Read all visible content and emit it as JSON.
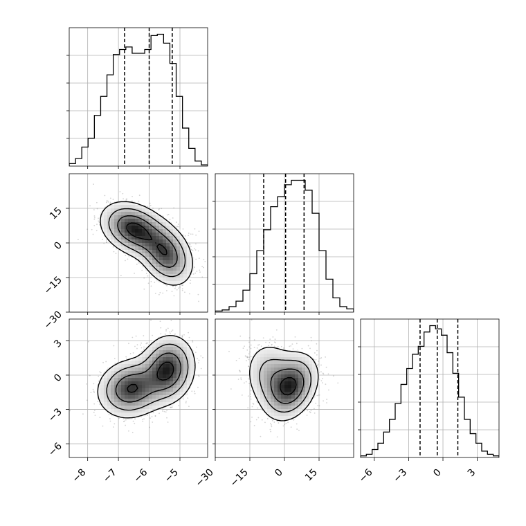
{
  "chart_data": {
    "type": "corner",
    "parameters": 3,
    "params": [
      {
        "range": [
          -8.6,
          -4.1
        ],
        "ticks": [
          -8,
          -7,
          -6,
          -5
        ],
        "tick_labels": [
          "−8",
          "−7",
          "−6",
          "−5"
        ],
        "quantiles": [
          -6.8,
          -6.0,
          -5.25
        ],
        "hist": [
          0.2,
          0.6,
          1.5,
          2.2,
          4.0,
          5.5,
          7.2,
          8.8,
          9.2,
          9.4,
          8.9,
          8.9,
          9.2,
          10.3,
          10.4,
          9.7,
          8.1,
          5.5,
          3.0,
          1.4,
          0.4,
          0.1
        ]
      },
      {
        "range": [
          -30,
          30
        ],
        "ticks": [
          -30,
          -15,
          0,
          15
        ],
        "tick_labels": [
          "−30",
          "−15",
          "0",
          "15"
        ],
        "quantiles": [
          -9,
          0.5,
          8.5
        ],
        "hist": [
          0.1,
          0.2,
          0.5,
          1.0,
          2.0,
          3.5,
          5.6,
          7.5,
          9.6,
          10.5,
          11.6,
          12.0,
          12.0,
          11.1,
          9.0,
          5.6,
          3.0,
          1.3,
          0.5,
          0.3
        ]
      },
      {
        "range": [
          -7.2,
          4.9
        ],
        "ticks": [
          -6,
          -3,
          0,
          3
        ],
        "tick_labels": [
          "−6",
          "−3",
          "0",
          "3"
        ],
        "quantiles": [
          -2.0,
          -0.5,
          1.3
        ],
        "hist": [
          0.1,
          0.2,
          0.5,
          0.9,
          1.6,
          2.4,
          3.4,
          4.6,
          5.6,
          6.5,
          7.0,
          7.9,
          8.3,
          8.1,
          7.7,
          6.6,
          5.3,
          3.8,
          2.4,
          1.5,
          0.9,
          0.4,
          0.2,
          0.1
        ]
      }
    ],
    "pairs": [
      {
        "x_param": 0,
        "y_param": 1,
        "components": [
          {
            "w": 0.55,
            "mx": -6.5,
            "my": 6,
            "sx": 0.55,
            "sy": 6,
            "rho": -0.3
          },
          {
            "w": 0.45,
            "mx": -5.45,
            "my": -5,
            "sx": 0.45,
            "sy": 7,
            "rho": -0.3
          }
        ]
      },
      {
        "x_param": 0,
        "y_param": 2,
        "components": [
          {
            "w": 0.5,
            "mx": -6.6,
            "my": -1.2,
            "sx": 0.55,
            "sy": 1.3,
            "rho": 0.1
          },
          {
            "w": 0.5,
            "mx": -5.4,
            "my": 0.5,
            "sx": 0.45,
            "sy": 1.5,
            "rho": 0.1
          }
        ]
      },
      {
        "x_param": 1,
        "y_param": 2,
        "components": [
          {
            "w": 0.65,
            "mx": 3,
            "my": -1.0,
            "sx": 6,
            "sy": 1.5,
            "rho": 0.3
          },
          {
            "w": 0.35,
            "mx": -6,
            "my": 0,
            "sx": 6,
            "sy": 1.6,
            "rho": -0.1
          }
        ]
      }
    ],
    "grid": true,
    "contour_levels": [
      0.5,
      1.0,
      1.5,
      2.0
    ]
  }
}
